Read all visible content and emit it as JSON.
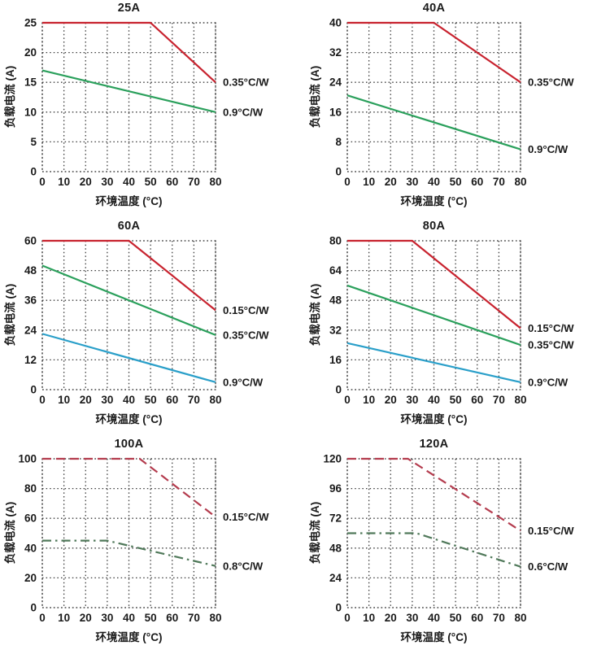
{
  "page": {
    "x_axis_label": "环境温度 (°C)",
    "y_axis_label": "负载电流 (A)",
    "grid_color": "#3a3a3a",
    "colors": {
      "red_solid": "#c8232f",
      "green_solid": "#2ba05c",
      "blue_solid": "#2a9fc9",
      "red_dashed": "#b43c4e",
      "green_dashdot": "#50795a"
    }
  },
  "chart_data": [
    {
      "type": "line",
      "title": "25A",
      "xlabel": "环境温度 (°C)",
      "ylabel": "负载电流 (A)",
      "x_range": [
        0,
        80
      ],
      "y_range": [
        0,
        25
      ],
      "x_ticks": [
        0,
        10,
        20,
        30,
        40,
        50,
        60,
        70,
        80
      ],
      "y_ticks": [
        0,
        5,
        10,
        15,
        20,
        25
      ],
      "grid": true,
      "legend_position": "right-of-line-end",
      "series": [
        {
          "name": "0.35°C/W",
          "color": "#c8232f",
          "style": "solid",
          "points": [
            [
              0,
              25
            ],
            [
              50,
              25
            ],
            [
              80,
              15
            ]
          ]
        },
        {
          "name": "0.9°C/W",
          "color": "#2ba05c",
          "style": "solid",
          "points": [
            [
              0,
              17
            ],
            [
              80,
              10
            ]
          ]
        }
      ]
    },
    {
      "type": "line",
      "title": "40A",
      "xlabel": "环境温度 (°C)",
      "ylabel": "负载电流 (A)",
      "x_range": [
        0,
        80
      ],
      "y_range": [
        0,
        40
      ],
      "x_ticks": [
        0,
        10,
        20,
        30,
        40,
        50,
        60,
        70,
        80
      ],
      "y_ticks": [
        0,
        8,
        16,
        24,
        32,
        40
      ],
      "grid": true,
      "legend_position": "right-of-line-end",
      "series": [
        {
          "name": "0.35°C/W",
          "color": "#c8232f",
          "style": "solid",
          "points": [
            [
              0,
              40
            ],
            [
              40,
              40
            ],
            [
              80,
              24
            ]
          ]
        },
        {
          "name": "0.9°C/W",
          "color": "#2ba05c",
          "style": "solid",
          "points": [
            [
              0,
              20.5
            ],
            [
              80,
              6
            ]
          ]
        }
      ]
    },
    {
      "type": "line",
      "title": "60A",
      "xlabel": "环境温度 (°C)",
      "ylabel": "负载电流 (A)",
      "x_range": [
        0,
        80
      ],
      "y_range": [
        0,
        60
      ],
      "x_ticks": [
        0,
        10,
        20,
        30,
        40,
        50,
        60,
        70,
        80
      ],
      "y_ticks": [
        0,
        12,
        24,
        36,
        48,
        60
      ],
      "grid": true,
      "legend_position": "right-of-line-end",
      "series": [
        {
          "name": "0.15°C/W",
          "color": "#c8232f",
          "style": "solid",
          "points": [
            [
              0,
              60
            ],
            [
              40,
              60
            ],
            [
              80,
              32
            ]
          ]
        },
        {
          "name": "0.35°C/W",
          "color": "#2ba05c",
          "style": "solid",
          "points": [
            [
              0,
              50
            ],
            [
              80,
              22
            ]
          ]
        },
        {
          "name": "0.9°C/W",
          "color": "#2a9fc9",
          "style": "solid",
          "points": [
            [
              0,
              22.5
            ],
            [
              80,
              3
            ]
          ]
        }
      ]
    },
    {
      "type": "line",
      "title": "80A",
      "xlabel": "环境温度 (°C)",
      "ylabel": "负载电流 (A)",
      "x_range": [
        0,
        80
      ],
      "y_range": [
        0,
        80
      ],
      "x_ticks": [
        0,
        10,
        20,
        30,
        40,
        50,
        60,
        70,
        80
      ],
      "y_ticks": [
        0,
        16,
        32,
        48,
        64,
        80
      ],
      "grid": true,
      "legend_position": "right-of-line-end",
      "series": [
        {
          "name": "0.15°C/W",
          "color": "#c8232f",
          "style": "solid",
          "points": [
            [
              0,
              80
            ],
            [
              30,
              80
            ],
            [
              80,
              33
            ]
          ]
        },
        {
          "name": "0.35°C/W",
          "color": "#2ba05c",
          "style": "solid",
          "points": [
            [
              0,
              56
            ],
            [
              80,
              24
            ]
          ]
        },
        {
          "name": "0.9°C/W",
          "color": "#2a9fc9",
          "style": "solid",
          "points": [
            [
              0,
              25
            ],
            [
              80,
              4
            ]
          ]
        }
      ]
    },
    {
      "type": "line",
      "title": "100A",
      "xlabel": "环境温度 (°C)",
      "ylabel": "负载电流 (A)",
      "x_range": [
        0,
        80
      ],
      "y_range": [
        0,
        100
      ],
      "x_ticks": [
        0,
        10,
        20,
        30,
        40,
        50,
        60,
        70,
        80
      ],
      "y_ticks": [
        0,
        20,
        40,
        60,
        80,
        100
      ],
      "grid": true,
      "legend_position": "right-of-line-end",
      "series": [
        {
          "name": "0.15°C/W",
          "color": "#b43c4e",
          "style": "dashed",
          "points": [
            [
              0,
              100
            ],
            [
              45,
              100
            ],
            [
              80,
              61
            ]
          ]
        },
        {
          "name": "0.8°C/W",
          "color": "#50795a",
          "style": "dashdot",
          "points": [
            [
              0,
              45
            ],
            [
              30,
              45
            ],
            [
              80,
              28
            ]
          ]
        }
      ]
    },
    {
      "type": "line",
      "title": "120A",
      "xlabel": "环境温度 (°C)",
      "ylabel": "负载电流 (A)",
      "x_range": [
        0,
        80
      ],
      "y_range": [
        0,
        120
      ],
      "x_ticks": [
        0,
        10,
        20,
        30,
        40,
        50,
        60,
        70,
        80
      ],
      "y_ticks": [
        0,
        24,
        48,
        72,
        96,
        120
      ],
      "grid": true,
      "legend_position": "right-of-line-end",
      "series": [
        {
          "name": "0.15°C/W",
          "color": "#b43c4e",
          "style": "dashed",
          "points": [
            [
              0,
              120
            ],
            [
              28,
              120
            ],
            [
              80,
              62
            ]
          ]
        },
        {
          "name": "0.6°C/W",
          "color": "#50795a",
          "style": "dashdot",
          "points": [
            [
              0,
              60
            ],
            [
              32,
              60
            ],
            [
              80,
              33
            ]
          ]
        }
      ]
    }
  ]
}
